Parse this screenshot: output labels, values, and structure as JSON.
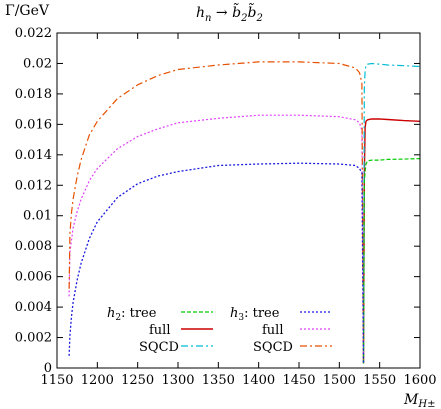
{
  "chart_data": {
    "type": "line",
    "title": "h_n → b̃₂b̃₂",
    "title_parts": {
      "h": "h",
      "n": "n",
      "arrow": " → ",
      "b": "b̃",
      "two": "2"
    },
    "ylabel": "Γ/GeV",
    "xlabel_parts": {
      "main": "M",
      "sub": "H±"
    },
    "xlim": [
      1150,
      1600
    ],
    "ylim": [
      0,
      0.022
    ],
    "xticks": [
      1150,
      1200,
      1250,
      1300,
      1350,
      1400,
      1450,
      1500,
      1550,
      1600
    ],
    "yticks": [
      "0",
      "0.002",
      "0.004",
      "0.006",
      "0.008",
      "0.01",
      "0.012",
      "0.014",
      "0.016",
      "0.018",
      "0.02",
      "0.022"
    ],
    "grid": false,
    "legend_position": "bottom",
    "legend_groups": [
      {
        "higgs": "h",
        "sub": "2",
        "suffix": ": tree"
      },
      {
        "higgs": "h",
        "sub": "3",
        "suffix": ": tree"
      }
    ],
    "series": [
      {
        "name": "full",
        "group": "h2",
        "color": "#cc0000",
        "dash": "solid",
        "width": 1.4,
        "x": [
          1530,
          1531,
          1532,
          1533,
          1535,
          1540,
          1550,
          1560,
          1580,
          1600
        ],
        "y": [
          0.0003,
          0.0125,
          0.0158,
          0.0162,
          0.0163,
          0.01635,
          0.01635,
          0.01632,
          0.01625,
          0.0162
        ]
      },
      {
        "name": "SQCD",
        "group": "h2",
        "color": "#00bcd4",
        "dash": "7 3 2 3",
        "width": 1.2,
        "x": [
          1530,
          1531,
          1532,
          1533,
          1535,
          1540,
          1550,
          1560,
          1580,
          1600
        ],
        "y": [
          0.0003,
          0.0183,
          0.0195,
          0.0199,
          0.01995,
          0.02,
          0.01995,
          0.0199,
          0.01985,
          0.0198
        ]
      },
      {
        "name": "full",
        "group": "h3",
        "color": "#e040fb",
        "dash": "2 2",
        "width": 1.2,
        "x": [
          1165,
          1166,
          1168,
          1170,
          1175,
          1180,
          1190,
          1200,
          1225,
          1250,
          1275,
          1300,
          1350,
          1400,
          1450,
          1500,
          1520,
          1525,
          1528,
          1530
        ],
        "y": [
          0.0047,
          0.0076,
          0.0084,
          0.0092,
          0.0103,
          0.0111,
          0.0123,
          0.0131,
          0.0144,
          0.0152,
          0.0157,
          0.0161,
          0.0164,
          0.0166,
          0.0166,
          0.0165,
          0.0163,
          0.0161,
          0.0156,
          0.0003
        ]
      },
      {
        "name": "SQCD",
        "group": "h3",
        "color": "#e65100",
        "dash": "7 3 2 3",
        "width": 1.2,
        "x": [
          1165,
          1166,
          1168,
          1170,
          1175,
          1180,
          1190,
          1200,
          1225,
          1250,
          1275,
          1300,
          1350,
          1400,
          1450,
          1500,
          1520,
          1525,
          1528,
          1530
        ],
        "y": [
          0.0052,
          0.0088,
          0.0102,
          0.0111,
          0.0126,
          0.0137,
          0.0153,
          0.0162,
          0.0177,
          0.0186,
          0.0192,
          0.0196,
          0.0199,
          0.0201,
          0.0201,
          0.02,
          0.0197,
          0.0194,
          0.0187,
          0.0003
        ]
      },
      {
        "name": "h2: tree",
        "group": "h2",
        "color": "#00cc00",
        "dash": "4 2",
        "width": 1.2,
        "x": [
          1530,
          1531,
          1532,
          1533,
          1535,
          1540,
          1550,
          1560,
          1580,
          1600
        ],
        "y": [
          0.0003,
          0.0122,
          0.0129,
          0.0134,
          0.0136,
          0.01365,
          0.01365,
          0.0137,
          0.01372,
          0.01375
        ]
      },
      {
        "name": "h3: tree",
        "group": "h3",
        "color": "#1a1adc",
        "dash": "2 2",
        "width": 1.3,
        "x": [
          1165,
          1166,
          1168,
          1170,
          1175,
          1180,
          1190,
          1200,
          1225,
          1250,
          1275,
          1300,
          1350,
          1400,
          1450,
          1500,
          1520,
          1525,
          1528,
          1530
        ],
        "y": [
          0.0008,
          0.0021,
          0.0034,
          0.0043,
          0.0058,
          0.0069,
          0.0085,
          0.0096,
          0.0112,
          0.0121,
          0.0126,
          0.0129,
          0.0133,
          0.0134,
          0.01345,
          0.0134,
          0.0133,
          0.0131,
          0.0128,
          0.0003
        ]
      }
    ]
  }
}
